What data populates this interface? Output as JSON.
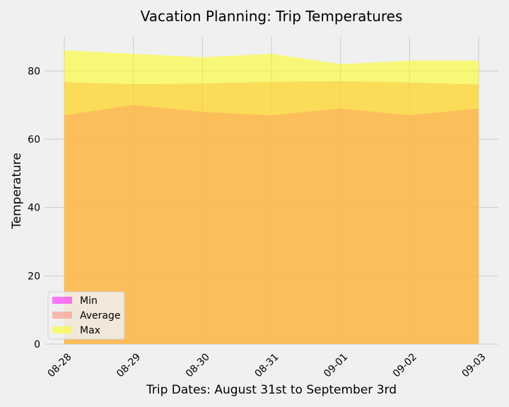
{
  "chart_data": {
    "type": "area",
    "title": "Vacation Planning: Trip Temperatures",
    "xlabel": "Trip Dates: August 31st to September 3rd",
    "ylabel": "Temperature",
    "categories": [
      "08-28",
      "08-29",
      "08-30",
      "08-31",
      "09-01",
      "09-02",
      "09-03"
    ],
    "ylim": [
      0,
      90
    ],
    "yticks": [
      0,
      20,
      40,
      60,
      80
    ],
    "grid": true,
    "stacked": false,
    "legend_position": "lower-left",
    "series": [
      {
        "name": "Min",
        "values": [
          67,
          70,
          68,
          67,
          69,
          67,
          69
        ],
        "color": "#ff00ff"
      },
      {
        "name": "Average",
        "values": [
          76.7,
          76.1,
          76.3,
          76.8,
          77.0,
          76.6,
          76.0
        ],
        "color": "#fa8072"
      },
      {
        "name": "Max",
        "values": [
          86,
          85,
          84,
          85,
          82,
          83,
          83
        ],
        "color": "#ffff00"
      }
    ]
  }
}
